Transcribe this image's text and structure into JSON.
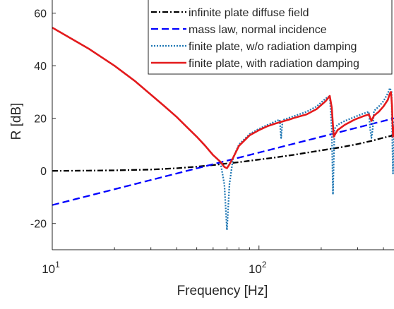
{
  "chart_data": {
    "type": "line",
    "xlabel": "Frequency [Hz]",
    "ylabel": "R [dB]",
    "xscale": "log",
    "xlim": [
      10,
      450
    ],
    "ylim": [
      -30,
      65
    ],
    "grid": false,
    "legend_position": "top-right",
    "x_ticks": [
      {
        "value": 10,
        "base": "10",
        "exp": "1"
      },
      {
        "value": 100,
        "base": "10",
        "exp": "2"
      }
    ],
    "y_ticks": [
      {
        "value": -20,
        "label": "-20"
      },
      {
        "value": 0,
        "label": "0"
      },
      {
        "value": 20,
        "label": "20"
      },
      {
        "value": 40,
        "label": "40"
      },
      {
        "value": 60,
        "label": "60"
      }
    ],
    "series": [
      {
        "name": "infinite plate diffuse field",
        "color": "#000000",
        "dash": "dashdot",
        "x": [
          10,
          15,
          20,
          30,
          40,
          50,
          60,
          70,
          80,
          100,
          120,
          150,
          200,
          250,
          300,
          350,
          400,
          450
        ],
        "y": [
          0,
          0.1,
          0.2,
          0.5,
          1.0,
          1.6,
          2.2,
          2.8,
          3.3,
          4.3,
          5.1,
          6.2,
          7.8,
          9.0,
          10.2,
          11.4,
          12.6,
          13.6
        ]
      },
      {
        "name": "mass law, normal incidence",
        "color": "#0000ff",
        "dash": "dashed",
        "x": [
          10,
          450
        ],
        "y": [
          -13,
          20
        ]
      },
      {
        "name": "finite plate, w/o radiation damping",
        "color": "#1f77b4",
        "dash": "dotted",
        "x": [
          10,
          15,
          20,
          25,
          30,
          35,
          40,
          45,
          50,
          55,
          60,
          65,
          68,
          70,
          72,
          75,
          80,
          90,
          100,
          110,
          120,
          126,
          128,
          130,
          132,
          140,
          150,
          170,
          190,
          210,
          220,
          225,
          228,
          232,
          240,
          260,
          290,
          320,
          340,
          345,
          350,
          355,
          360,
          380,
          400,
          420,
          430,
          438,
          442,
          445,
          450
        ],
        "y": [
          54.5,
          46.5,
          40.0,
          34.3,
          29.0,
          24.5,
          20.5,
          16.5,
          13.0,
          9.5,
          6.0,
          3.5,
          -5,
          -22.5,
          -5,
          5,
          10,
          14,
          16,
          17.5,
          18.8,
          19.5,
          12.5,
          18.8,
          19.5,
          20.2,
          21.0,
          22.5,
          24.5,
          27.5,
          28.5,
          16,
          -9,
          16,
          17.5,
          19.0,
          20.5,
          21.8,
          22.5,
          16,
          12.5,
          16,
          22.8,
          24.5,
          26.5,
          29.5,
          31.5,
          30,
          10,
          -1,
          19
        ]
      },
      {
        "name": "finite plate, with radiation damping",
        "color": "#e41a1c",
        "dash": "solid",
        "x": [
          10,
          15,
          20,
          25,
          30,
          35,
          40,
          45,
          50,
          55,
          60,
          65,
          68,
          70,
          72,
          75,
          80,
          90,
          100,
          110,
          120,
          130,
          140,
          150,
          170,
          190,
          210,
          220,
          225,
          230,
          240,
          260,
          290,
          320,
          340,
          350,
          360,
          380,
          400,
          420,
          430,
          435,
          440,
          445,
          450
        ],
        "y": [
          54.5,
          46.5,
          40.0,
          34.3,
          29.0,
          24.5,
          20.5,
          16.5,
          13.0,
          9.5,
          6.0,
          3.5,
          1.5,
          1.0,
          2.5,
          5,
          9.5,
          13.5,
          15.5,
          17.0,
          18.0,
          18.8,
          19.5,
          20.3,
          21.5,
          23.5,
          26.5,
          28.5,
          24,
          13,
          15.5,
          17.5,
          19.5,
          20.8,
          21.5,
          19,
          21.0,
          22.5,
          24.5,
          27.0,
          29.5,
          30,
          25,
          13,
          17
        ]
      }
    ]
  }
}
